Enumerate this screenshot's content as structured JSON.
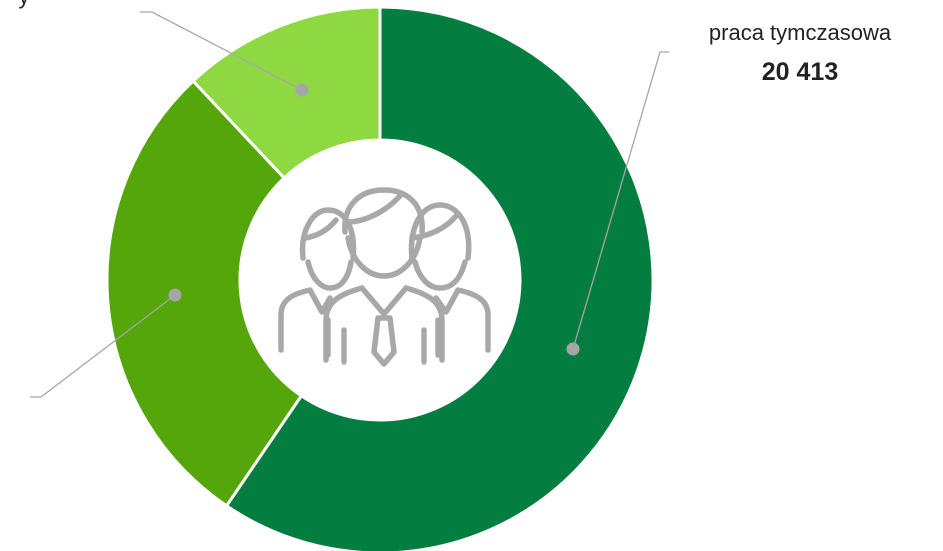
{
  "chart_data": {
    "type": "pie",
    "variant": "donut",
    "slices": [
      {
        "name": "praca tymczasowa",
        "value": "20 413",
        "share": 0.595,
        "color": "#047d40",
        "label": "praca tymczasowa"
      },
      {
        "name": "",
        "value": "",
        "share": 0.285,
        "color": "#55a60a",
        "label": ""
      },
      {
        "name": "y",
        "value": "",
        "share": 0.12,
        "color": "#8ed941",
        "label": "y"
      }
    ],
    "center_icon": "group-of-people-icon",
    "legend": "none"
  }
}
